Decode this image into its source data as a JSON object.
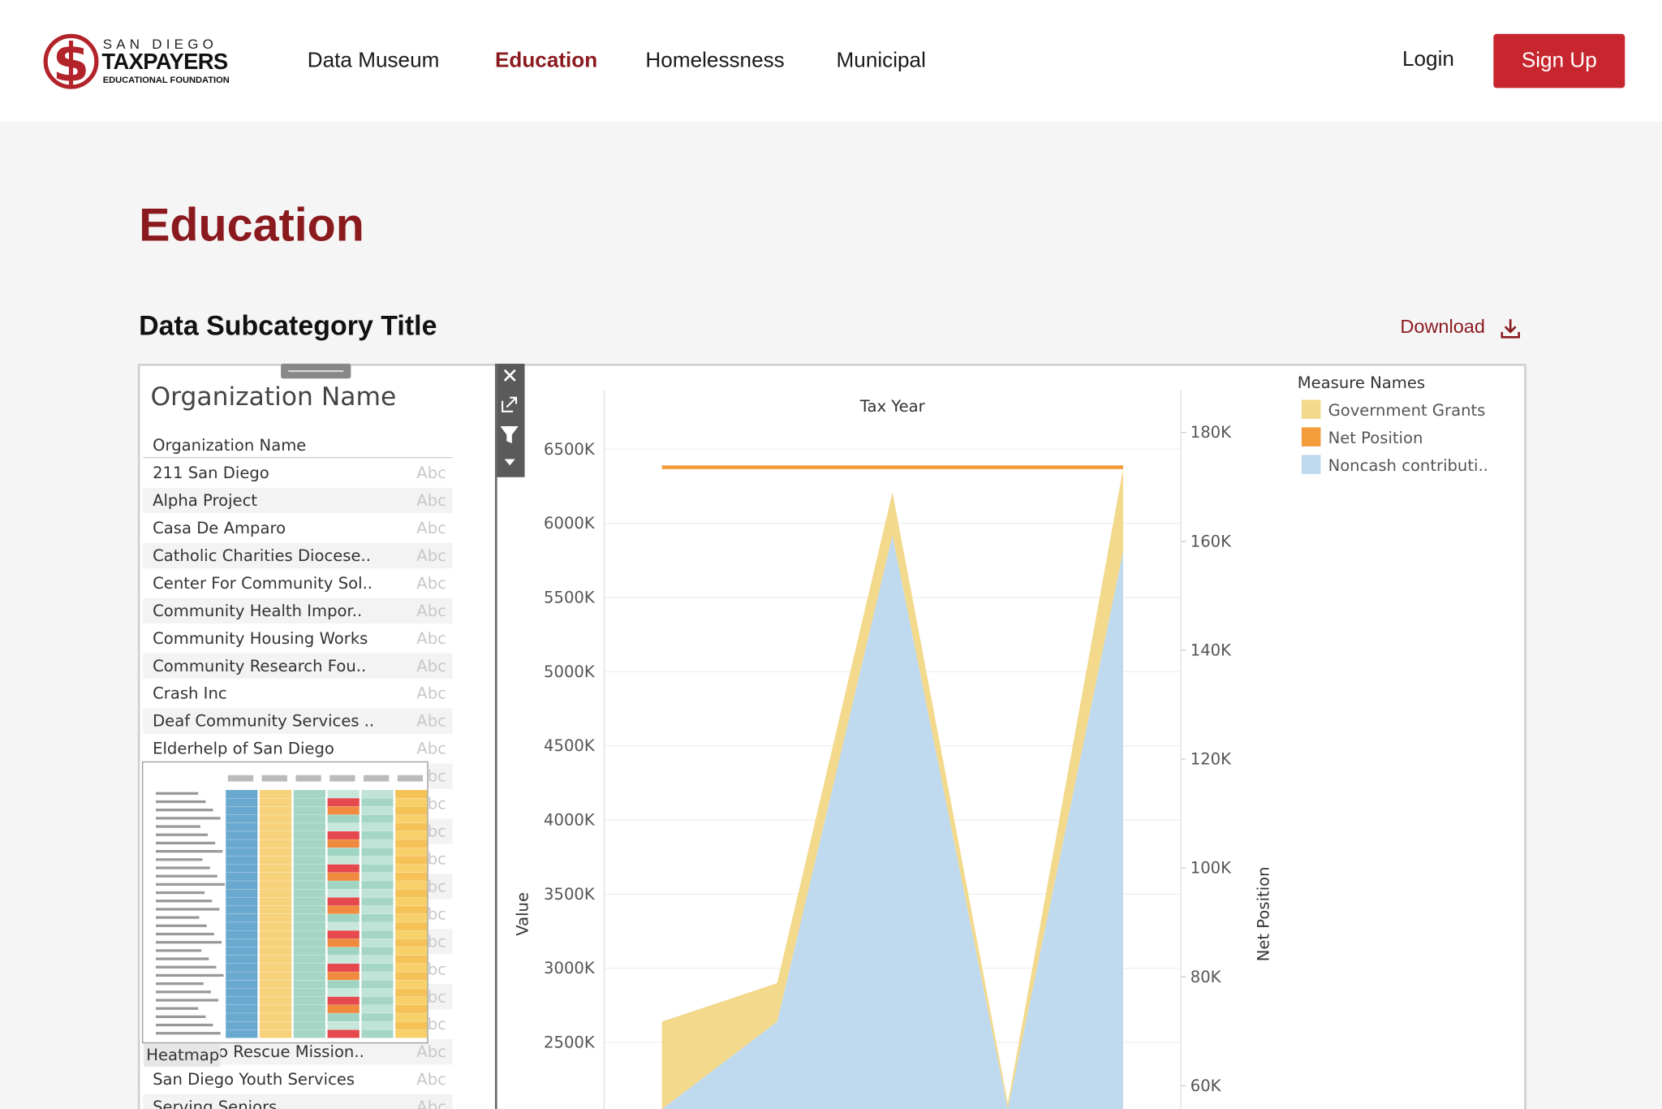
{
  "nav": {
    "logo": {
      "line1": "SAN DIEGO",
      "line2": "TAXPAYERS",
      "line3": "EDUCATIONAL FOUNDATION"
    },
    "links": [
      "Data Museum",
      "Education",
      "Homelessness",
      "Municipal"
    ],
    "login": "Login",
    "signup": "Sign Up"
  },
  "page": {
    "title": "Education",
    "subtitle": "Data Subcategory Title",
    "download": "Download"
  },
  "filter": {
    "title": "Organization Name",
    "header": "Organization Name",
    "type_label": "Abc",
    "tooltip": "Heatmap",
    "rows_top": [
      "211 San Diego",
      "Alpha Project",
      "Casa De Amparo",
      "Catholic Charities Diocese..",
      "Center For Community Sol..",
      "Community Health Impor..",
      "Community Housing Works",
      "Community Research Fou..",
      "Crash Inc",
      "Deaf Community Services ..",
      "Elderhelp of San Diego"
    ],
    "rows_bottom": [
      "o Rescue Mission..",
      "San Diego Youth Services",
      "Serving Seniors"
    ]
  },
  "chart_data": {
    "type": "area",
    "x_label": "Tax Year",
    "y_label": "Value",
    "y2_label": "Net Position",
    "legend_title": "Measure Names",
    "stacked": true,
    "grid": true,
    "categories": [
      null,
      null,
      null,
      null,
      null
    ],
    "series": [
      {
        "name": "Government Grants",
        "color": "#f3d98c",
        "values": [
          590000,
          260000,
          290000,
          40000,
          560000
        ]
      },
      {
        "name": "Net Position",
        "color": "#f39c3c",
        "axis": "y2",
        "values": [
          173600,
          173600,
          173600,
          173600,
          173600
        ]
      },
      {
        "name": "Noncash contributi..",
        "color": "#bfd9ee",
        "values": [
          2050000,
          2640000,
          5920000,
          2050000,
          5810000
        ]
      }
    ],
    "ylim": [
      2050000,
      6690000
    ],
    "yticks": [
      {
        "value": 2500000,
        "label": "2500K"
      },
      {
        "value": 3000000,
        "label": "3000K"
      },
      {
        "value": 3500000,
        "label": "3500K"
      },
      {
        "value": 4000000,
        "label": "4000K"
      },
      {
        "value": 4500000,
        "label": "4500K"
      },
      {
        "value": 5000000,
        "label": "5000K"
      },
      {
        "value": 5500000,
        "label": "5500K"
      },
      {
        "value": 6000000,
        "label": "6000K"
      },
      {
        "value": 6500000,
        "label": "6500K"
      }
    ],
    "y2lim": [
      55700,
      182100
    ],
    "y2ticks": [
      {
        "value": 60000,
        "label": "60K"
      },
      {
        "value": 80000,
        "label": "80K"
      },
      {
        "value": 100000,
        "label": "100K"
      },
      {
        "value": 120000,
        "label": "120K"
      },
      {
        "value": 140000,
        "label": "140K"
      },
      {
        "value": 160000,
        "label": "160K"
      },
      {
        "value": 180000,
        "label": "180K"
      }
    ]
  }
}
